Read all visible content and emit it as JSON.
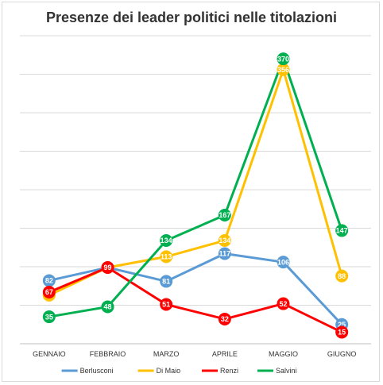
{
  "chart_data": {
    "type": "line",
    "title": "Presenze dei leader politici nelle titolazioni",
    "categories": [
      "GENNAIO",
      "FEBBRAIO",
      "MARZO",
      "APRILE",
      "MAGGIO",
      "GIUGNO"
    ],
    "ylim": [
      0,
      400
    ],
    "grid": true,
    "legend_position": "bottom",
    "series": [
      {
        "name": "Berlusconi",
        "color": "#5b9bd5",
        "values": [
          82,
          99,
          81,
          117,
          106,
          25
        ]
      },
      {
        "name": "Di Maio",
        "color": "#ffc000",
        "values": [
          63,
          99,
          113,
          134,
          356,
          88
        ]
      },
      {
        "name": "Renzi",
        "color": "#ff0000",
        "values": [
          67,
          99,
          51,
          32,
          52,
          15
        ]
      },
      {
        "name": "Salvini",
        "color": "#00b050",
        "values": [
          35,
          48,
          134,
          167,
          370,
          147
        ]
      }
    ]
  }
}
